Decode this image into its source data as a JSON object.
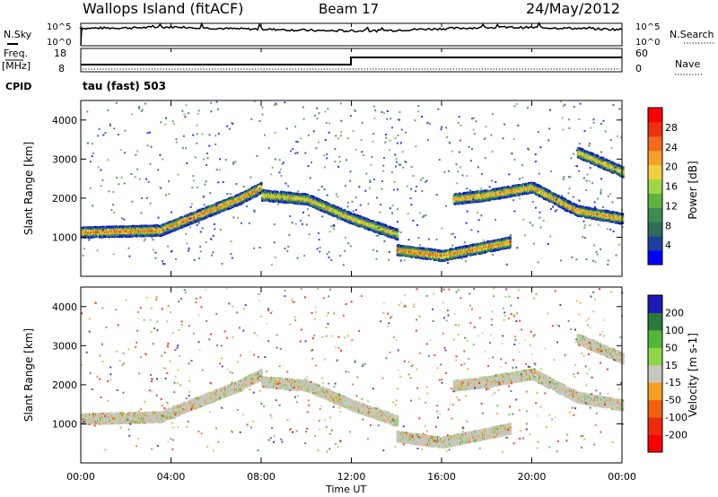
{
  "header": {
    "title": "Wallops Island (fitACF)",
    "beam": "Beam 17",
    "date": "24/May/2012"
  },
  "left_labels": {
    "nsky": "N.Sky",
    "freq": "Freq.",
    "mhz": "[MHz]",
    "cpid": "CPID"
  },
  "right_labels": {
    "nsearch": "N.Search",
    "nave": "Nave"
  },
  "top_panel": {
    "left_ticks": [
      "10^5",
      "10^0"
    ],
    "right_ticks": [
      "10^5",
      "10^0"
    ],
    "freq_ticks": [
      "18",
      "8"
    ],
    "nave_ticks": [
      "60",
      "0"
    ]
  },
  "cpid_text": "tau (fast) 503",
  "colors": {
    "background": "#ffffff",
    "axis": "#000000",
    "power_scale": [
      "#0000ff",
      "#1d3fa0",
      "#2e6d5a",
      "#3f8a54",
      "#5fb344",
      "#9ed645",
      "#f0d040",
      "#f5a028",
      "#f26a1a",
      "#ee3010",
      "#ff0000"
    ],
    "velocity_scale": [
      "#1a1ab4",
      "#2a7a3a",
      "#52b83a",
      "#8fd64a",
      "#c8c8c0",
      "#f5a020",
      "#f06010",
      "#ee2a0e",
      "#ff0000"
    ]
  },
  "chart_data": [
    {
      "type": "line",
      "panel": "N.Sky / N.Search",
      "x_range": [
        "00:00",
        "00:00"
      ],
      "y_scale": "log",
      "ylim": [
        "10^0",
        "10^5"
      ],
      "series": [
        {
          "values": [
            3.6,
            3.7,
            3.9,
            3.5,
            3.3,
            3.0,
            3.0,
            3.4,
            3.7,
            3.8,
            3.6,
            3.3
          ]
        }
      ]
    },
    {
      "type": "line",
      "panel": "Freq. / Nave",
      "x": [
        "00:00",
        "12:00",
        "12:01",
        "00:00"
      ],
      "series": [
        {
          "values": [
            10.5,
            10.5,
            14.5,
            14.5
          ]
        },
        {
          "values": [
            2,
            2,
            2,
            2
          ]
        }
      ]
    },
    {
      "type": "heatmap",
      "panel": "Power",
      "x_ticks": [
        "00:00",
        "04:00",
        "08:00",
        "12:00",
        "16:00",
        "20:00",
        "00:00"
      ],
      "ylabel": "Slant Range [km]",
      "y_ticks": [
        "1000",
        "2000",
        "3000",
        "4000"
      ],
      "colorbar_label": "Power [dB]",
      "colorbar_ticks": [
        "4",
        "8",
        "12",
        "16",
        "20",
        "24",
        "28"
      ],
      "bands": [
        {
          "hours": [
            0,
            3.5,
            7,
            8
          ],
          "range_km": [
            1150,
            1200,
            2000,
            2300
          ],
          "level": 24
        },
        {
          "hours": [
            8,
            10,
            12,
            14
          ],
          "range_km": [
            2100,
            2000,
            1500,
            1100
          ],
          "level": 20
        },
        {
          "hours": [
            14,
            16,
            19
          ],
          "range_km": [
            700,
            550,
            900
          ],
          "level": 24
        },
        {
          "hours": [
            16.5,
            18,
            20,
            22,
            24
          ],
          "range_km": [
            2000,
            2100,
            2300,
            1700,
            1500
          ],
          "level": 22
        },
        {
          "hours": [
            22,
            24
          ],
          "range_km": [
            3200,
            2700
          ],
          "level": 20
        }
      ]
    },
    {
      "type": "heatmap",
      "panel": "Velocity",
      "x_ticks": [
        "00:00",
        "04:00",
        "08:00",
        "12:00",
        "16:00",
        "20:00",
        "00:00"
      ],
      "ylabel": "Slant Range [km]",
      "y_ticks": [
        "1000",
        "2000",
        "3000",
        "4000"
      ],
      "colorbar_label": "Velocity [m s-1]",
      "colorbar_ticks": [
        "200",
        "100",
        "50",
        "15",
        "-15",
        "-50",
        "-100",
        "-200"
      ],
      "xlabel": "Time UT"
    }
  ]
}
